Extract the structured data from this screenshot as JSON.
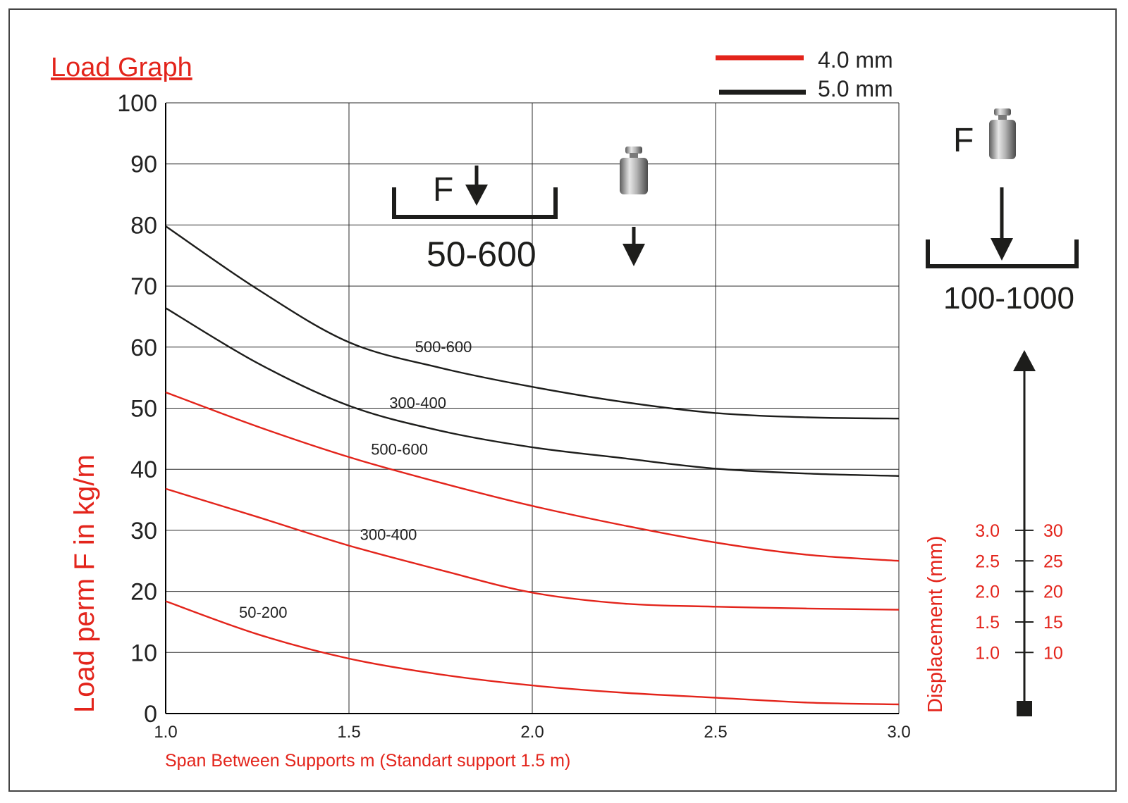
{
  "colors": {
    "red": "#e3241b",
    "black": "#1d1d1b"
  },
  "chart_data": {
    "type": "line",
    "title": "Load Graph",
    "xlabel": "Span Between Supports m (Standart support 1.5 m)",
    "ylabel": "Load perm F in kg/m",
    "y2label": "Displacement (mm)",
    "xlim": [
      1.0,
      3.0
    ],
    "ylim": [
      0,
      100
    ],
    "x_ticks": [
      "1.0",
      "1.5",
      "2.0",
      "2.5",
      "3.0"
    ],
    "y_ticks": [
      "0",
      "10",
      "20",
      "30",
      "40",
      "50",
      "60",
      "70",
      "80",
      "90",
      "100"
    ],
    "grid": true,
    "legend": [
      {
        "label": "4.0 mm",
        "color": "#e3241b"
      },
      {
        "label": "5.0 mm",
        "color": "#1d1d1b"
      }
    ],
    "series": [
      {
        "label": "500-600",
        "group": "5.0 mm",
        "color": "#1d1d1b",
        "x": [
          1.0,
          1.25,
          1.5,
          1.75,
          2.0,
          2.25,
          2.5,
          2.75,
          3.0
        ],
        "y": [
          79.8,
          69.5,
          60.8,
          56.6,
          53.5,
          51.0,
          49.2,
          48.5,
          48.3
        ]
      },
      {
        "label": "300-400",
        "group": "5.0 mm",
        "color": "#1d1d1b",
        "x": [
          1.0,
          1.25,
          1.5,
          1.75,
          2.0,
          2.25,
          2.5,
          2.75,
          3.0
        ],
        "y": [
          66.4,
          57.4,
          50.4,
          46.3,
          43.6,
          41.8,
          40.1,
          39.3,
          38.9
        ]
      },
      {
        "label": "500-600",
        "group": "4.0 mm",
        "color": "#e3241b",
        "x": [
          1.0,
          1.25,
          1.5,
          1.75,
          2.0,
          2.25,
          2.5,
          2.75,
          3.0
        ],
        "y": [
          52.6,
          47.0,
          42.0,
          37.8,
          34.0,
          30.8,
          28.0,
          26.0,
          25.0
        ]
      },
      {
        "label": "300-400",
        "group": "4.0 mm",
        "color": "#e3241b",
        "x": [
          1.0,
          1.25,
          1.5,
          1.75,
          2.0,
          2.25,
          2.5,
          2.75,
          3.0
        ],
        "y": [
          36.8,
          32.2,
          27.5,
          23.5,
          19.8,
          18.0,
          17.5,
          17.2,
          17.0
        ]
      },
      {
        "label": "50-200",
        "group": "4.0 mm",
        "color": "#e3241b",
        "x": [
          1.0,
          1.25,
          1.5,
          1.75,
          2.0,
          2.25,
          2.5,
          2.75,
          3.0
        ],
        "y": [
          18.4,
          13.0,
          9.0,
          6.4,
          4.6,
          3.4,
          2.6,
          1.8,
          1.5
        ]
      }
    ],
    "annotations": {
      "support_span_small": "50-600",
      "support_span_large": "100-1000",
      "force_symbol": "F"
    },
    "displacement_scale": {
      "left": [
        "1.0",
        "1.5",
        "2.0",
        "2.5",
        "3.0"
      ],
      "right": [
        "10",
        "15",
        "20",
        "25",
        "30"
      ],
      "load_values": [
        10,
        15,
        20,
        25,
        30
      ]
    }
  }
}
